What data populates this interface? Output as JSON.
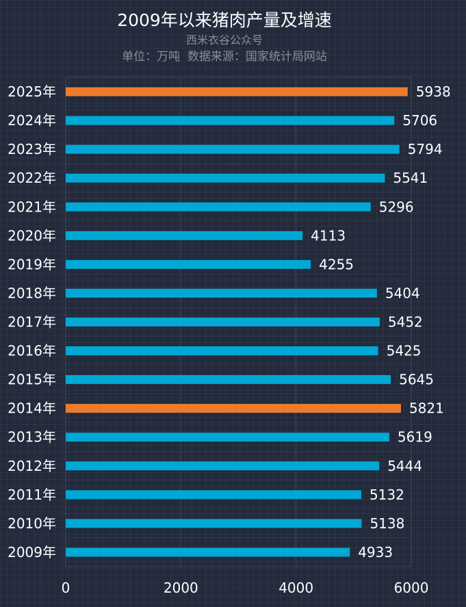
{
  "chart_data": {
    "type": "bar",
    "orientation": "horizontal",
    "title": "2009年以来猪肉产量及增速",
    "subtitle": "西米衣谷公众号",
    "unit_note": "单位：万吨  数据来源：国家统计局网站",
    "categories": [
      "2025年",
      "2024年",
      "2023年",
      "2022年",
      "2021年",
      "2020年",
      "2019年",
      "2018年",
      "2017年",
      "2016年",
      "2015年",
      "2014年",
      "2013年",
      "2012年",
      "2011年",
      "2010年",
      "2009年"
    ],
    "values": [
      5938,
      5706,
      5794,
      5541,
      5296,
      4113,
      4255,
      5404,
      5452,
      5425,
      5645,
      5821,
      5619,
      5444,
      5132,
      5138,
      4933
    ],
    "highlight": [
      "2025年",
      "2014年"
    ],
    "x_ticks": [
      0,
      2000,
      4000,
      6000
    ],
    "xlim": [
      0,
      6000
    ],
    "grid": true,
    "legend": "none"
  },
  "colors": {
    "bar": "#00a8d6",
    "highlight_bar": "#ee7b2c",
    "background": "#222a3b",
    "text": "#ffffff",
    "subtitle": "#8a8f99",
    "gridline": "#3a4458"
  }
}
